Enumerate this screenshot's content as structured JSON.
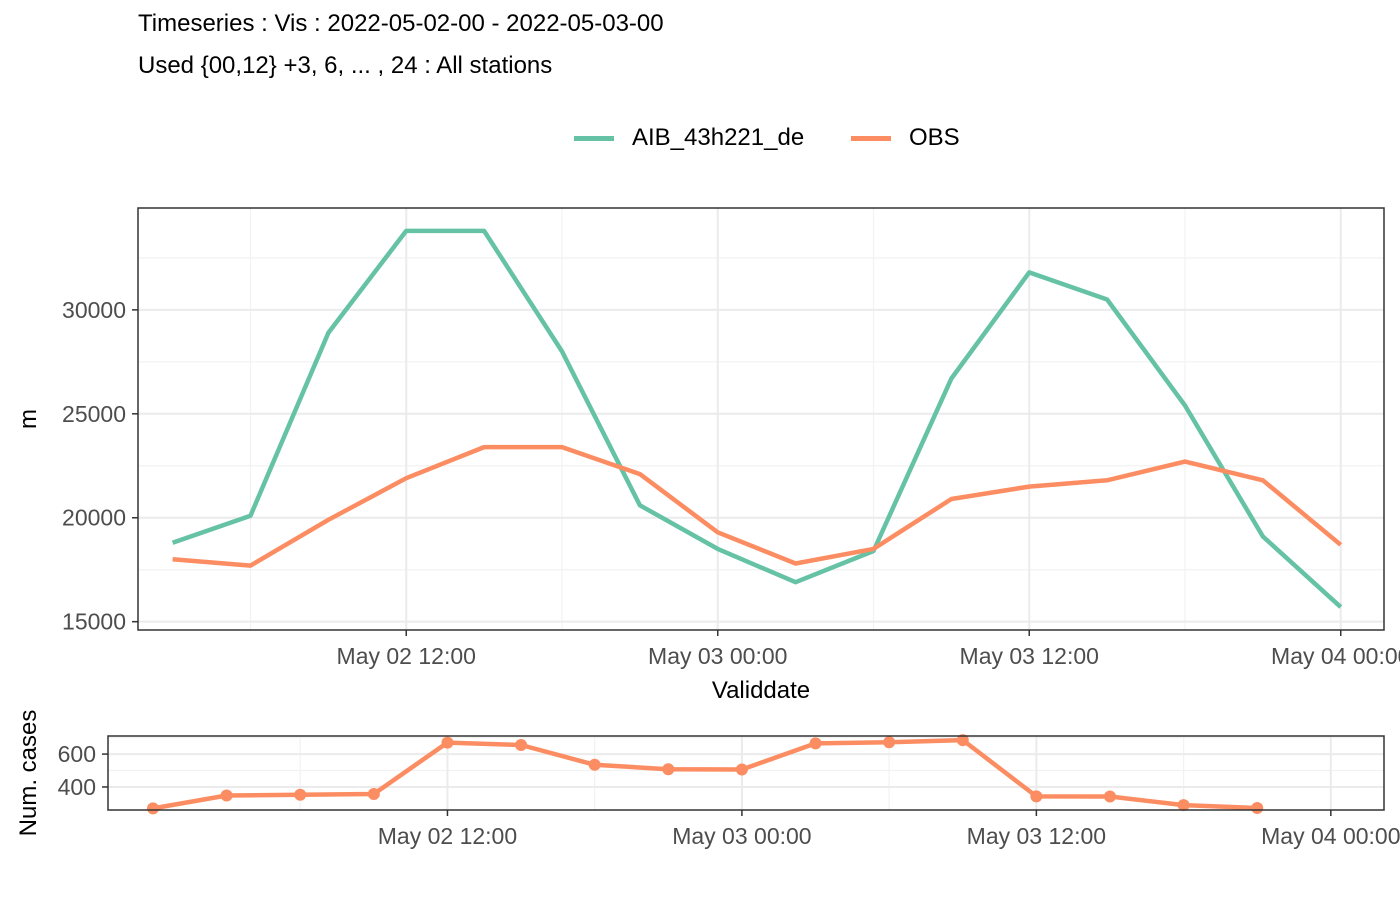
{
  "title": "Timeseries : Vis : 2022-05-02-00 - 2022-05-03-00",
  "subtitle": "Used {00,12} +3, 6, ... , 24 : All stations",
  "colors": {
    "model": "#66c2a5",
    "obs": "#fc8d62"
  },
  "legend": [
    "AIB_43h221_de",
    "OBS"
  ],
  "chart_data": [
    {
      "type": "line",
      "xlabel": "Validdate",
      "ylabel": "m",
      "x_ticks": [
        "May 02 12:00",
        "May 03 00:00",
        "May 03 12:00",
        "May 04 00:00"
      ],
      "y_ticks": [
        15000,
        20000,
        25000,
        30000
      ],
      "ylim": [
        14600,
        34900
      ],
      "x": [
        "2022-05-02 03:00",
        "2022-05-02 06:00",
        "2022-05-02 09:00",
        "2022-05-02 12:00",
        "2022-05-02 15:00",
        "2022-05-02 18:00",
        "2022-05-02 21:00",
        "2022-05-03 00:00",
        "2022-05-03 03:00",
        "2022-05-03 06:00",
        "2022-05-03 09:00",
        "2022-05-03 12:00",
        "2022-05-03 15:00",
        "2022-05-03 18:00",
        "2022-05-03 21:00",
        "2022-05-04 00:00"
      ],
      "grid": true,
      "legend_position": "top",
      "series": [
        {
          "name": "AIB_43h221_de",
          "values": [
            18800,
            20100,
            28900,
            33800,
            33800,
            28000,
            20600,
            18500,
            16900,
            18400,
            26700,
            31800,
            30500,
            25400,
            19100,
            15700
          ]
        },
        {
          "name": "OBS",
          "values": [
            18000,
            17700,
            19900,
            21900,
            23400,
            23400,
            22100,
            19300,
            17800,
            18500,
            20900,
            21500,
            21800,
            22700,
            21800,
            18700
          ]
        }
      ]
    },
    {
      "type": "line",
      "ylabel": "Num. cases",
      "x_ticks": [
        "May 02 12:00",
        "May 03 00:00",
        "May 03 12:00",
        "May 04 00:00"
      ],
      "y_ticks": [
        400,
        600
      ],
      "ylim": [
        260,
        710
      ],
      "x": [
        "2022-05-02 00:00",
        "2022-05-02 03:00",
        "2022-05-02 06:00",
        "2022-05-02 09:00",
        "2022-05-02 12:00",
        "2022-05-02 15:00",
        "2022-05-02 18:00",
        "2022-05-02 21:00",
        "2022-05-03 00:00",
        "2022-05-03 03:00",
        "2022-05-03 06:00",
        "2022-05-03 09:00",
        "2022-05-03 12:00",
        "2022-05-03 15:00",
        "2022-05-03 18:00",
        "2022-05-03 21:00"
      ],
      "grid": true,
      "series": [
        {
          "values": [
            270,
            348,
            353,
            357,
            670,
            655,
            535,
            508,
            506,
            665,
            672,
            685,
            343,
            342,
            290,
            272
          ]
        }
      ]
    }
  ]
}
